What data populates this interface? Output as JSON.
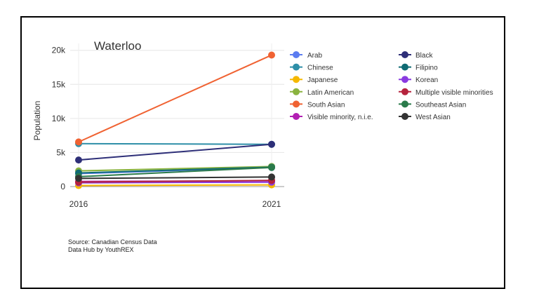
{
  "chart_data": {
    "type": "line",
    "title": "Waterloo",
    "xlabel": "",
    "ylabel": "Population",
    "categories": [
      "2016",
      "2021"
    ],
    "ylim": [
      0,
      21000
    ],
    "yticks": [
      0,
      5000,
      10000,
      15000,
      20000
    ],
    "ytick_labels": [
      "0",
      "5k",
      "10k",
      "15k",
      "20k"
    ],
    "grid": true,
    "legend_position": "right",
    "series": [
      {
        "name": "Arab",
        "color": "#5b7cf0",
        "values": [
          1900,
          2800
        ]
      },
      {
        "name": "Chinese",
        "color": "#2e8fa8",
        "values": [
          6300,
          6200
        ]
      },
      {
        "name": "Japanese",
        "color": "#f5b800",
        "values": [
          150,
          250
        ]
      },
      {
        "name": "Latin American",
        "color": "#8ab33f",
        "values": [
          2300,
          2950
        ]
      },
      {
        "name": "South Asian",
        "color": "#f06232",
        "values": [
          6550,
          19300
        ]
      },
      {
        "name": "Visible minority, n.i.e.",
        "color": "#b21fb3",
        "values": [
          750,
          850
        ]
      },
      {
        "name": "Black",
        "color": "#2e2f78",
        "values": [
          3900,
          6200
        ]
      },
      {
        "name": "Filipino",
        "color": "#0f6b73",
        "values": [
          2000,
          2850
        ]
      },
      {
        "name": "Korean",
        "color": "#8a3ae0",
        "values": [
          550,
          650
        ]
      },
      {
        "name": "Multiple visible minorities",
        "color": "#b5233d",
        "values": [
          650,
          900
        ]
      },
      {
        "name": "Southeast Asian",
        "color": "#2a7a4a",
        "values": [
          1450,
          2800
        ]
      },
      {
        "name": "West Asian",
        "color": "#333333",
        "values": [
          1200,
          1400
        ]
      }
    ],
    "annotations": [
      "Source: Canadian Census Data",
      "Data Hub by YouthREX"
    ]
  }
}
